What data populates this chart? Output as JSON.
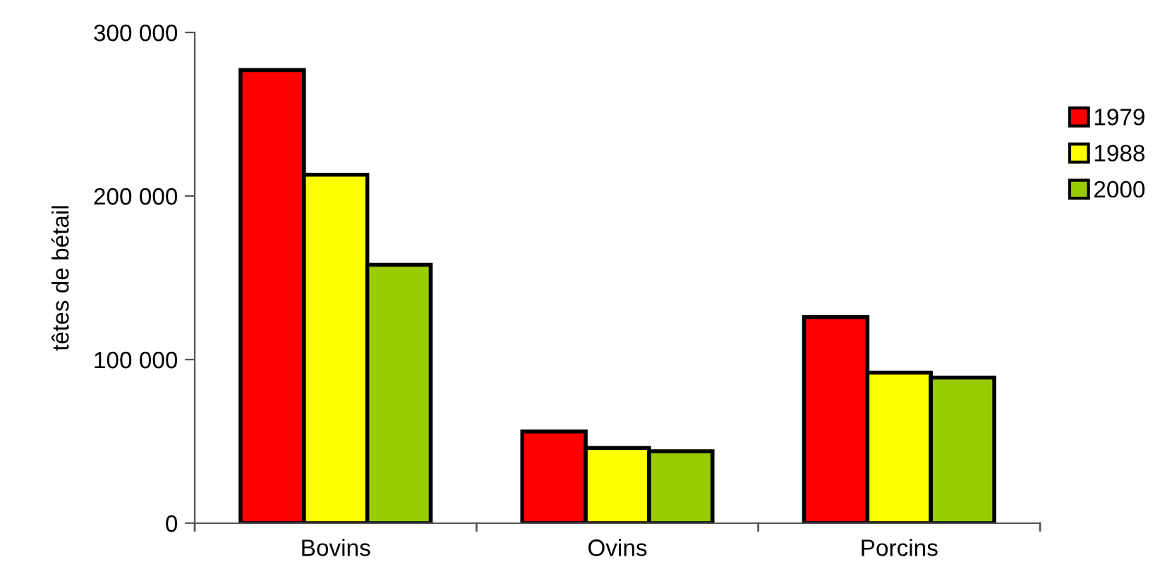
{
  "chart_data": {
    "type": "bar",
    "ylabel": "têtes de bétail",
    "categories": [
      "Bovins",
      "Ovins",
      "Porcins"
    ],
    "series": [
      {
        "name": "1979",
        "color": "#ff0000",
        "values": [
          277000,
          56000,
          126000
        ]
      },
      {
        "name": "1988",
        "color": "#ffff00",
        "values": [
          213000,
          46000,
          92000
        ]
      },
      {
        "name": "2000",
        "color": "#99cc00",
        "values": [
          158000,
          44000,
          89000
        ]
      }
    ],
    "ylim": [
      0,
      300000
    ],
    "yticks": [
      0,
      {
        "value": 100000,
        "label": "100 000"
      },
      {
        "value": 200000,
        "label": "200 000"
      },
      {
        "value": 300000,
        "label": "300 000"
      }
    ],
    "grid": false,
    "legend": "right"
  }
}
